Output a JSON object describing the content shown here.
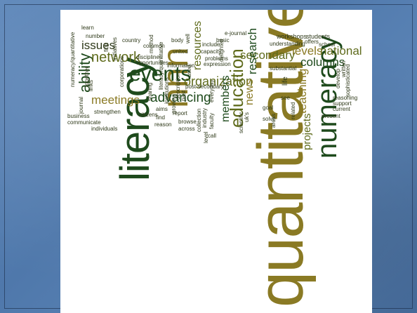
{
  "word_cloud": {
    "words": {
      "quantitative": "quantitative",
      "literacy": "literacy",
      "nnn": "nnn",
      "numeracy": "numeracy",
      "events": "events",
      "education": "education",
      "ability": "ability",
      "network": "network",
      "issues": "issues",
      "meetings": "meetings",
      "advancing": "advancing",
      "organization": "organization",
      "secondary": "secondary",
      "columns": "columns",
      "levels": "levels",
      "national": "national",
      "teaching": "teaching",
      "projects": "projects",
      "research": "research",
      "news": "news",
      "resources": "resources",
      "members": "members",
      "workshops": "workshops",
      "students": "students",
      "school": "school",
      "offers": "offers",
      "understanding": "understanding",
      "substantial": "substantial",
      "written": "written",
      "sophisticated": "sophisticated",
      "develop": "develop",
      "reasoning": "reasoning",
      "support": "support",
      "current": "current",
      "present": "present",
      "life": "life",
      "see": "see",
      "related": "related",
      "areas": "areas",
      "solve": "solve",
      "uk_s": "uk's",
      "goal": "goal",
      "scientific": "scientific",
      "post_secondary": "post-secondary",
      "everyday": "everyday",
      "faculty": "faculty",
      "industry": "industry",
      "level": "level",
      "call": "call",
      "collection": "collection",
      "delighted": "delighted",
      "problems": "problems",
      "expression": "expression",
      "basic": "basic",
      "include": "include",
      "capacity": "capacity",
      "e_journal": "e-journal",
      "body": "body",
      "well": "well",
      "united": "united",
      "common": "common",
      "information": "information",
      "used": "used",
      "descriptions": "descriptions",
      "past": "past",
      "browse": "browse",
      "across": "across",
      "report": "report",
      "growing": "growing",
      "sharing": "sharing",
      "institutions": "institutions",
      "aims": "aims",
      "find": "find",
      "reason": "reason",
      "citizens": "citizens",
      "opportunities": "opportunities",
      "disciplines": "disciplines",
      "method": "method",
      "literacy_quantitative": "literacy/quantitative",
      "strengthen": "strengthen",
      "country": "country",
      "first": "first",
      "corporations": "corporations",
      "initiatives": "initiatives",
      "number": "number",
      "learn": "learn",
      "numeracy_quantitative": "numeracy/quantitative",
      "journal": "journal",
      "together": "together",
      "links": "links",
      "business": "business",
      "communicate": "communicate",
      "individuals": "individuals",
      "increase": "increase"
    },
    "colors": {
      "gold": "#8a7a24",
      "olive": "#5f6b1c",
      "dark_green": "#1e4a1c",
      "white_panel": "#ffffff",
      "slide_blue": "#5a84b6"
    }
  }
}
